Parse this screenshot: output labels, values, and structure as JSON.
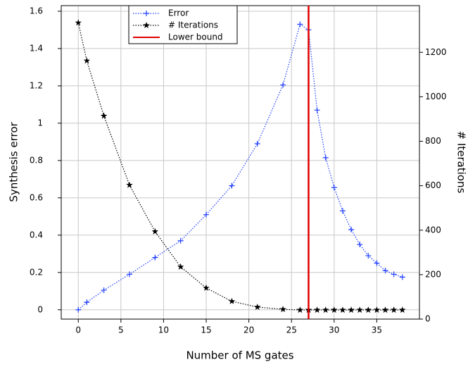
{
  "chart_data": {
    "type": "line",
    "xlabel": "Number of MS gates",
    "ylabel": "Synthesis error",
    "y2label": "# Iterations",
    "xlim": [
      -2,
      40
    ],
    "xticks": [
      0,
      5,
      10,
      15,
      20,
      25,
      30,
      35
    ],
    "ylim": [
      -0.05,
      1.63
    ],
    "yticks": [
      0,
      0.2,
      0.4,
      0.6,
      0.8,
      1,
      1.2,
      1.4,
      1.6
    ],
    "y2lim": [
      0,
      1410
    ],
    "y2ticks": [
      0,
      200,
      400,
      600,
      800,
      1000,
      1200
    ],
    "grid": true,
    "legend": "top",
    "series": [
      {
        "name": "Error",
        "color": "#1f3fff",
        "marker": "plus",
        "x": [
          0,
          1,
          3,
          6,
          9,
          12,
          15,
          18,
          21,
          24,
          26,
          27,
          28,
          29,
          30,
          31,
          32,
          33,
          34,
          35,
          36,
          37,
          38
        ],
        "values": [
          0,
          0.04,
          0.105,
          0.19,
          0.28,
          0.37,
          0.51,
          0.665,
          0.89,
          1.205,
          1.53,
          1.5,
          1.07,
          0.815,
          0.655,
          0.53,
          0.43,
          0.35,
          0.29,
          0.25,
          0.21,
          0.19,
          0.175
        ]
      },
      {
        "name": "# Iterations",
        "color": "#000000",
        "marker": "star",
        "axis": "y2",
        "x": [
          0,
          1,
          3,
          6,
          9,
          12,
          15,
          18,
          21,
          24,
          26,
          27,
          28,
          29,
          30,
          31,
          32,
          33,
          34,
          35,
          36,
          37,
          38
        ],
        "values": [
          1333,
          1162,
          914,
          603,
          394,
          235,
          140,
          80,
          54,
          44,
          41,
          41,
          41,
          41,
          41,
          41,
          41,
          41,
          41,
          41,
          41,
          41,
          41
        ]
      }
    ],
    "vlines": [
      {
        "name": "Lower bound",
        "x": 27,
        "color": "#e00000"
      }
    ]
  }
}
